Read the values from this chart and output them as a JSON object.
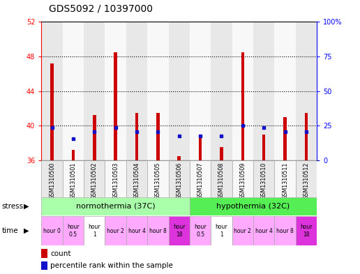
{
  "title": "GDS5092 / 10397000",
  "samples": [
    "GSM1310500",
    "GSM1310501",
    "GSM1310502",
    "GSM1310503",
    "GSM1310504",
    "GSM1310505",
    "GSM1310506",
    "GSM1310507",
    "GSM1310508",
    "GSM1310509",
    "GSM1310510",
    "GSM1310511",
    "GSM1310512"
  ],
  "counts": [
    47.2,
    37.2,
    41.2,
    48.5,
    41.5,
    41.5,
    36.5,
    39.0,
    37.5,
    48.5,
    39.0,
    41.0,
    41.5
  ],
  "percentiles": [
    39.8,
    38.5,
    39.3,
    39.8,
    39.3,
    39.3,
    38.8,
    38.8,
    38.8,
    40.0,
    39.8,
    39.3,
    39.3
  ],
  "ylim_left": [
    36,
    52
  ],
  "ylim_right": [
    0,
    100
  ],
  "yticks_left": [
    36,
    40,
    44,
    48,
    52
  ],
  "yticks_right": [
    0,
    25,
    50,
    75,
    100
  ],
  "bar_color": "#cc0000",
  "dot_color": "#1111cc",
  "bg_color": "#ffffff",
  "col_bg_even": "#e8e8e8",
  "col_bg_odd": "#f8f8f8",
  "normothermia_label": "normothermia (37C)",
  "hypothermia_label": "hypothermia (32C)",
  "normothermia_color": "#aaffaa",
  "hypothermia_color": "#55ee55",
  "time_labels": [
    "hour 0",
    "hour\n0.5",
    "hour\n1",
    "hour 2",
    "hour 4",
    "hour 8",
    "hour\n18",
    "hour\n0.5",
    "hour\n1",
    "hour 2",
    "hour 4",
    "hour 8",
    "hour\n18"
  ],
  "time_colors": [
    "#ffaaff",
    "#ffaaff",
    "#ffffff",
    "#ffaaff",
    "#ffaaff",
    "#ffaaff",
    "#dd33dd",
    "#ffaaff",
    "#ffffff",
    "#ffaaff",
    "#ffaaff",
    "#ffaaff",
    "#dd33dd"
  ],
  "stress_label": "stress",
  "time_label": "time",
  "legend_count": "count",
  "legend_percentile": "percentile rank within the sample",
  "title_fontsize": 10,
  "tick_fontsize": 7,
  "label_fontsize": 8
}
